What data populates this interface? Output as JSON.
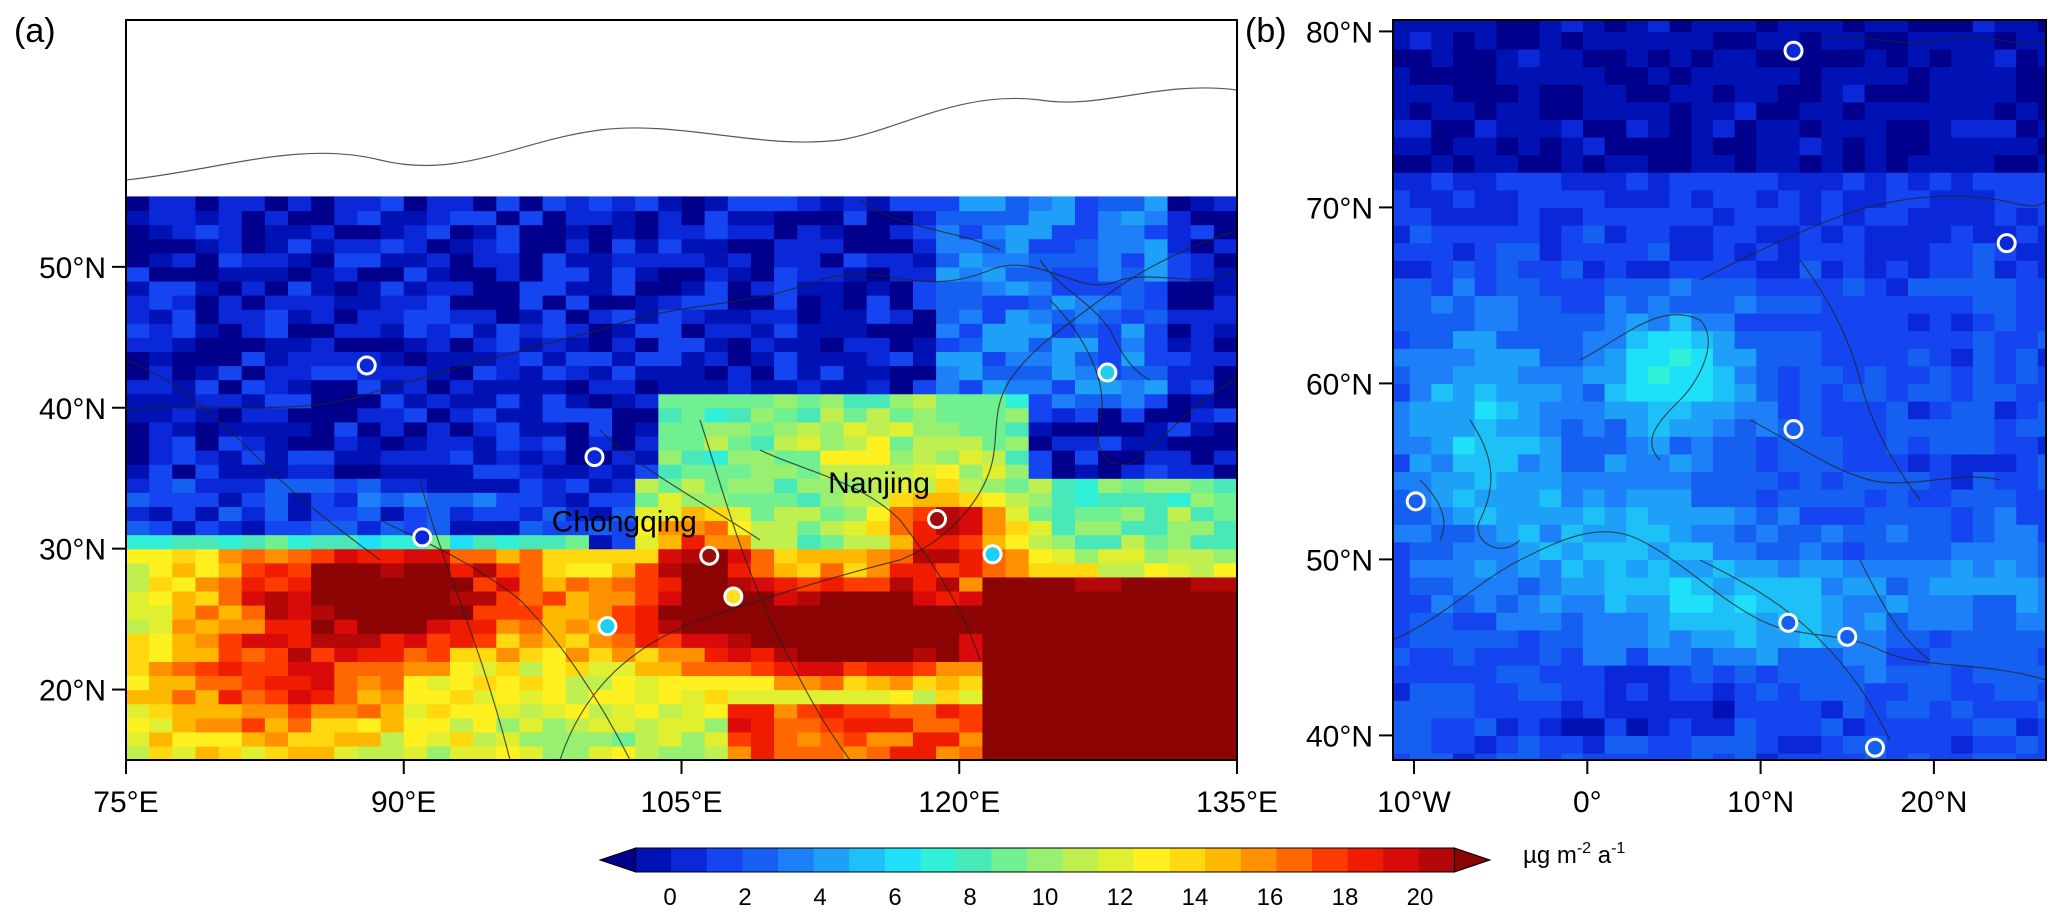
{
  "panel_a": {
    "label": "(a)",
    "lon_ticks": [
      "75°E",
      "90°E",
      "105°E",
      "120°E",
      "135°E"
    ],
    "lat_ticks": [
      "20°N",
      "30°N",
      "40°N",
      "50°N"
    ],
    "city_labels": [
      {
        "name": "Chongqing",
        "lon": 106.5,
        "lat": 29.5
      },
      {
        "name": "Nanjing",
        "lon": 118.8,
        "lat": 32.1
      }
    ],
    "sites": [
      {
        "lon": 88.0,
        "lat": 43.0,
        "value": 2,
        "color": "#0a28d8"
      },
      {
        "lon": 100.3,
        "lat": 36.5,
        "value": 2,
        "color": "#0a28d8"
      },
      {
        "lon": 91.0,
        "lat": 30.8,
        "value": 2,
        "color": "#0a28d8"
      },
      {
        "lon": 128.0,
        "lat": 42.5,
        "value": 8,
        "color": "#1ed0f0"
      },
      {
        "lon": 118.8,
        "lat": 32.1,
        "value": 20,
        "color": "#9b0c0c"
      },
      {
        "lon": 106.5,
        "lat": 29.5,
        "value": 20,
        "color": "#9b0c0c"
      },
      {
        "lon": 121.8,
        "lat": 29.6,
        "value": 8,
        "color": "#1ed0f0"
      },
      {
        "lon": 107.8,
        "lat": 26.6,
        "value": 14,
        "color": "#ffe020"
      },
      {
        "lon": 101.0,
        "lat": 24.5,
        "value": 8,
        "color": "#1ed0f0"
      }
    ]
  },
  "panel_b": {
    "label": "(b)",
    "lon_ticks": [
      "10°W",
      "0°",
      "10°N",
      "20°N"
    ],
    "lat_ticks": [
      "40°N",
      "50°N",
      "60°N",
      "70°N",
      "80°N"
    ],
    "sites": [
      {
        "lon": 11.9,
        "lat": 78.9,
        "value": 2,
        "color": "#0a28d8"
      },
      {
        "lon": 24.2,
        "lat": 67.97,
        "value": 2,
        "color": "#0a28d8"
      },
      {
        "lon": 11.9,
        "lat": 57.4,
        "value": 4,
        "color": "#1560f0"
      },
      {
        "lon": -9.9,
        "lat": 53.3,
        "value": 4,
        "color": "#1560f0"
      },
      {
        "lon": 11.6,
        "lat": 46.4,
        "value": 4,
        "color": "#1560f0"
      },
      {
        "lon": 15.0,
        "lat": 45.6,
        "value": 4,
        "color": "#1560f0"
      },
      {
        "lon": 16.6,
        "lat": 39.3,
        "value": 4,
        "color": "#1560f0"
      }
    ]
  },
  "colorbar": {
    "tick_labels": [
      "0",
      "2",
      "4",
      "6",
      "8",
      "10",
      "12",
      "14",
      "16",
      "18",
      "20"
    ],
    "unit_main": "µg m",
    "unit_exp1": "-2",
    "unit_mid": " a",
    "unit_exp2": "-1",
    "colors": [
      "#00008c",
      "#0012b4",
      "#0a28d8",
      "#1545f0",
      "#1560f0",
      "#1e80f8",
      "#1ea0f8",
      "#1ec0f8",
      "#1ee0f8",
      "#30f0d8",
      "#48e8b8",
      "#70f090",
      "#98f070",
      "#c0f050",
      "#e0f030",
      "#fff020",
      "#ffd810",
      "#ffb800",
      "#ff9000",
      "#ff6800",
      "#ff3c00",
      "#f01c00",
      "#d80a0a",
      "#b40808",
      "#8c0404"
    ]
  }
}
